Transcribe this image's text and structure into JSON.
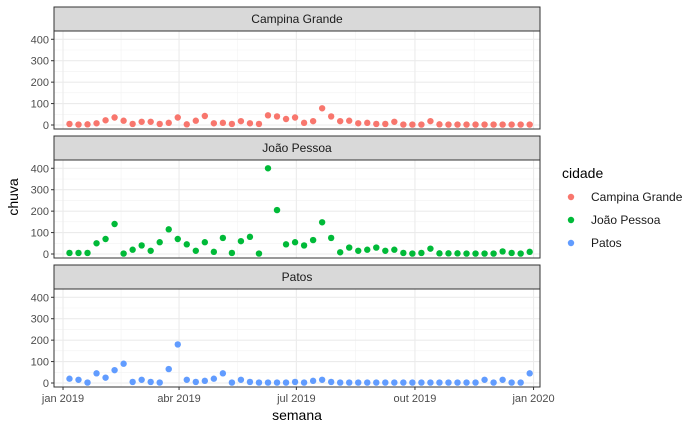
{
  "chart_data": {
    "type": "scatter",
    "xlabel": "semana",
    "ylabel": "chuva",
    "ylim": [
      0,
      420
    ],
    "y_ticks": [
      0,
      100,
      200,
      300,
      400
    ],
    "x_ticks": [
      {
        "date": "2019-01-01",
        "label": "jan 2019"
      },
      {
        "date": "2019-04-01",
        "label": "abr 2019"
      },
      {
        "date": "2019-07-01",
        "label": "jul 2019"
      },
      {
        "date": "2019-10-01",
        "label": "out 2019"
      },
      {
        "date": "2020-01-01",
        "label": "jan 2020"
      }
    ],
    "xlim": [
      "2018-12-25",
      "2020-01-06"
    ],
    "grid": true,
    "legend": {
      "title": "cidade",
      "position": "right"
    },
    "series": [
      {
        "name": "Campina Grande",
        "color": "#F8766D",
        "points": [
          [
            "2019-01-06",
            5
          ],
          [
            "2019-01-13",
            2
          ],
          [
            "2019-01-20",
            3
          ],
          [
            "2019-01-27",
            8
          ],
          [
            "2019-02-03",
            22
          ],
          [
            "2019-02-10",
            35
          ],
          [
            "2019-02-17",
            20
          ],
          [
            "2019-02-24",
            5
          ],
          [
            "2019-03-03",
            15
          ],
          [
            "2019-03-10",
            15
          ],
          [
            "2019-03-17",
            5
          ],
          [
            "2019-03-24",
            10
          ],
          [
            "2019-03-31",
            35
          ],
          [
            "2019-04-07",
            3
          ],
          [
            "2019-04-14",
            20
          ],
          [
            "2019-04-21",
            42
          ],
          [
            "2019-04-28",
            8
          ],
          [
            "2019-05-05",
            10
          ],
          [
            "2019-05-12",
            5
          ],
          [
            "2019-05-19",
            18
          ],
          [
            "2019-05-26",
            8
          ],
          [
            "2019-06-02",
            5
          ],
          [
            "2019-06-09",
            45
          ],
          [
            "2019-06-16",
            40
          ],
          [
            "2019-06-23",
            28
          ],
          [
            "2019-06-30",
            35
          ],
          [
            "2019-07-07",
            10
          ],
          [
            "2019-07-14",
            18
          ],
          [
            "2019-07-21",
            78
          ],
          [
            "2019-07-28",
            40
          ],
          [
            "2019-08-04",
            18
          ],
          [
            "2019-08-11",
            20
          ],
          [
            "2019-08-18",
            8
          ],
          [
            "2019-08-25",
            10
          ],
          [
            "2019-09-01",
            5
          ],
          [
            "2019-09-08",
            5
          ],
          [
            "2019-09-15",
            15
          ],
          [
            "2019-09-22",
            2
          ],
          [
            "2019-09-29",
            2
          ],
          [
            "2019-10-06",
            2
          ],
          [
            "2019-10-13",
            18
          ],
          [
            "2019-10-20",
            3
          ],
          [
            "2019-10-27",
            2
          ],
          [
            "2019-11-03",
            2
          ],
          [
            "2019-11-10",
            2
          ],
          [
            "2019-11-17",
            2
          ],
          [
            "2019-11-24",
            2
          ],
          [
            "2019-12-01",
            2
          ],
          [
            "2019-12-08",
            2
          ],
          [
            "2019-12-15",
            2
          ],
          [
            "2019-12-22",
            2
          ],
          [
            "2019-12-29",
            2
          ]
        ]
      },
      {
        "name": "João Pessoa",
        "color": "#00BA38",
        "points": [
          [
            "2019-01-06",
            5
          ],
          [
            "2019-01-13",
            5
          ],
          [
            "2019-01-20",
            5
          ],
          [
            "2019-01-27",
            50
          ],
          [
            "2019-02-03",
            70
          ],
          [
            "2019-02-10",
            140
          ],
          [
            "2019-02-17",
            2
          ],
          [
            "2019-02-24",
            20
          ],
          [
            "2019-03-03",
            40
          ],
          [
            "2019-03-10",
            15
          ],
          [
            "2019-03-17",
            55
          ],
          [
            "2019-03-24",
            115
          ],
          [
            "2019-03-31",
            70
          ],
          [
            "2019-04-07",
            45
          ],
          [
            "2019-04-14",
            15
          ],
          [
            "2019-04-21",
            55
          ],
          [
            "2019-04-28",
            10
          ],
          [
            "2019-05-05",
            75
          ],
          [
            "2019-05-12",
            5
          ],
          [
            "2019-05-19",
            60
          ],
          [
            "2019-05-26",
            80
          ],
          [
            "2019-06-02",
            2
          ],
          [
            "2019-06-09",
            400
          ],
          [
            "2019-06-16",
            205
          ],
          [
            "2019-06-23",
            45
          ],
          [
            "2019-06-30",
            55
          ],
          [
            "2019-07-07",
            40
          ],
          [
            "2019-07-14",
            65
          ],
          [
            "2019-07-21",
            148
          ],
          [
            "2019-07-28",
            75
          ],
          [
            "2019-08-04",
            8
          ],
          [
            "2019-08-11",
            30
          ],
          [
            "2019-08-18",
            15
          ],
          [
            "2019-08-25",
            20
          ],
          [
            "2019-09-01",
            30
          ],
          [
            "2019-09-08",
            15
          ],
          [
            "2019-09-15",
            20
          ],
          [
            "2019-09-22",
            5
          ],
          [
            "2019-09-29",
            2
          ],
          [
            "2019-10-06",
            5
          ],
          [
            "2019-10-13",
            25
          ],
          [
            "2019-10-20",
            3
          ],
          [
            "2019-10-27",
            3
          ],
          [
            "2019-11-03",
            3
          ],
          [
            "2019-11-10",
            2
          ],
          [
            "2019-11-17",
            2
          ],
          [
            "2019-11-24",
            2
          ],
          [
            "2019-12-01",
            2
          ],
          [
            "2019-12-08",
            12
          ],
          [
            "2019-12-15",
            5
          ],
          [
            "2019-12-22",
            2
          ],
          [
            "2019-12-29",
            10
          ]
        ]
      },
      {
        "name": "Patos",
        "color": "#619CFF",
        "points": [
          [
            "2019-01-06",
            20
          ],
          [
            "2019-01-13",
            15
          ],
          [
            "2019-01-20",
            2
          ],
          [
            "2019-01-27",
            45
          ],
          [
            "2019-02-03",
            25
          ],
          [
            "2019-02-10",
            60
          ],
          [
            "2019-02-17",
            90
          ],
          [
            "2019-02-24",
            5
          ],
          [
            "2019-03-03",
            15
          ],
          [
            "2019-03-10",
            5
          ],
          [
            "2019-03-17",
            2
          ],
          [
            "2019-03-24",
            65
          ],
          [
            "2019-03-31",
            180
          ],
          [
            "2019-04-07",
            15
          ],
          [
            "2019-04-14",
            5
          ],
          [
            "2019-04-21",
            10
          ],
          [
            "2019-04-28",
            20
          ],
          [
            "2019-05-05",
            45
          ],
          [
            "2019-05-12",
            2
          ],
          [
            "2019-05-19",
            15
          ],
          [
            "2019-05-26",
            5
          ],
          [
            "2019-06-02",
            2
          ],
          [
            "2019-06-09",
            2
          ],
          [
            "2019-06-16",
            2
          ],
          [
            "2019-06-23",
            2
          ],
          [
            "2019-06-30",
            5
          ],
          [
            "2019-07-07",
            2
          ],
          [
            "2019-07-14",
            10
          ],
          [
            "2019-07-21",
            15
          ],
          [
            "2019-07-28",
            5
          ],
          [
            "2019-08-04",
            2
          ],
          [
            "2019-08-11",
            2
          ],
          [
            "2019-08-18",
            2
          ],
          [
            "2019-08-25",
            2
          ],
          [
            "2019-09-01",
            2
          ],
          [
            "2019-09-08",
            2
          ],
          [
            "2019-09-15",
            2
          ],
          [
            "2019-09-22",
            2
          ],
          [
            "2019-09-29",
            2
          ],
          [
            "2019-10-06",
            2
          ],
          [
            "2019-10-13",
            2
          ],
          [
            "2019-10-20",
            2
          ],
          [
            "2019-10-27",
            2
          ],
          [
            "2019-11-03",
            2
          ],
          [
            "2019-11-10",
            2
          ],
          [
            "2019-11-17",
            2
          ],
          [
            "2019-11-24",
            15
          ],
          [
            "2019-12-01",
            2
          ],
          [
            "2019-12-08",
            15
          ],
          [
            "2019-12-15",
            2
          ],
          [
            "2019-12-22",
            2
          ],
          [
            "2019-12-29",
            45
          ]
        ]
      }
    ]
  }
}
